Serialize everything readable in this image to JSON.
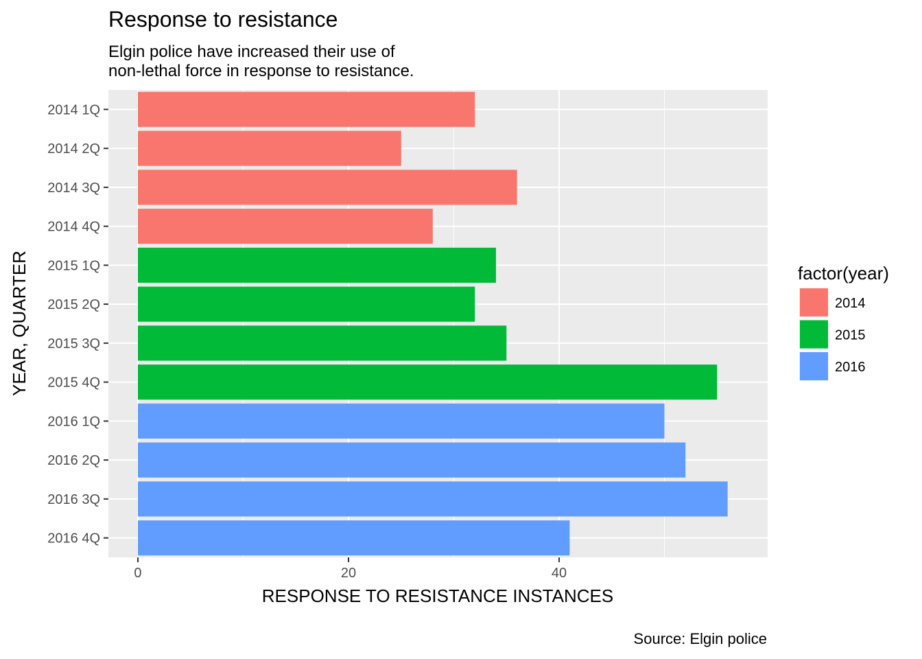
{
  "chart_data": {
    "type": "bar",
    "orientation": "horizontal",
    "title": "Response to resistance",
    "subtitle": [
      "Elgin police have increased their use of",
      "non-lethal force in response to resistance."
    ],
    "xlabel": "RESPONSE TO RESISTANCE INSTANCES",
    "ylabel": "YEAR, QUARTER",
    "caption": "Source: Elgin police",
    "xlim": [
      -2.8,
      59.8
    ],
    "x_ticks": [
      0,
      20,
      40
    ],
    "grid": true,
    "legend": {
      "title": "factor(year)",
      "placement": "right",
      "entries": [
        {
          "label": "2014",
          "color": "#F8766D"
        },
        {
          "label": "2015",
          "color": "#00BA38"
        },
        {
          "label": "2016",
          "color": "#619CFF"
        }
      ]
    },
    "categories": [
      "2014 1Q",
      "2014 2Q",
      "2014 3Q",
      "2014 4Q",
      "2015 1Q",
      "2015 2Q",
      "2015 3Q",
      "2015 4Q",
      "2016 1Q",
      "2016 2Q",
      "2016 3Q",
      "2016 4Q"
    ],
    "values": [
      32,
      25,
      36,
      28,
      34,
      32,
      35,
      55,
      50,
      52,
      56,
      41
    ],
    "groups": [
      "2014",
      "2014",
      "2014",
      "2014",
      "2015",
      "2015",
      "2015",
      "2015",
      "2016",
      "2016",
      "2016",
      "2016"
    ]
  }
}
